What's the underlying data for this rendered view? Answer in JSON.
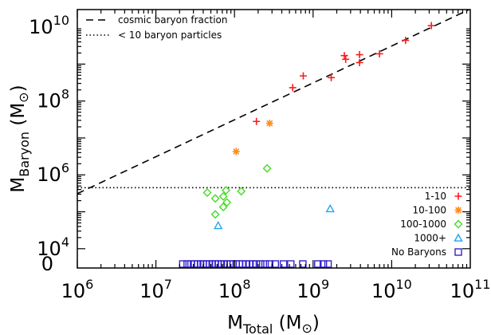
{
  "chart_data": {
    "type": "scatter",
    "x_scale": "log",
    "y_scale": "log (with separate zero row)",
    "xlim": [
      1000000,
      100000000000
    ],
    "ylim": [
      3000,
      30000000000
    ],
    "xlabel": {
      "main": "M",
      "sub": "Total",
      "unit": "(M",
      "sun": "⊙",
      "close": ")"
    },
    "ylabel": {
      "main": "M",
      "sub": "Baryon",
      "unit": "(M",
      "sun": "⊙",
      "close": ")"
    },
    "x_ticks": [
      {
        "value": 1000000,
        "base": "10",
        "exp": "6"
      },
      {
        "value": 10000000,
        "base": "10",
        "exp": "7"
      },
      {
        "value": 100000000,
        "base": "10",
        "exp": "8"
      },
      {
        "value": 1000000000,
        "base": "10",
        "exp": "9"
      },
      {
        "value": 10000000000,
        "base": "10",
        "exp": "10"
      },
      {
        "value": 100000000000,
        "base": "10",
        "exp": "11"
      }
    ],
    "y_ticks": [
      {
        "value": 10000,
        "base": "10",
        "exp": "4"
      },
      {
        "value": 1000000,
        "base": "10",
        "exp": "6"
      },
      {
        "value": 100000000,
        "base": "10",
        "exp": "8"
      },
      {
        "value": 10000000000,
        "base": "10",
        "exp": "10"
      }
    ],
    "y_zero_label": "0",
    "reference_lines": [
      {
        "name": "cosmic baryon fraction",
        "style": "dashed",
        "kind": "fraction",
        "fraction": 0.31,
        "color": "#000000"
      },
      {
        "name": "< 10 baryon particles",
        "style": "dotted",
        "kind": "constant",
        "y": 450000,
        "color": "#000000"
      }
    ],
    "series": [
      {
        "name": "1-10",
        "marker": "plus",
        "color": "#ff1a1a",
        "points": [
          {
            "x": 190000000,
            "y": 28000000
          },
          {
            "x": 550000000,
            "y": 230000000
          },
          {
            "x": 750000000,
            "y": 480000000
          },
          {
            "x": 1700000000,
            "y": 430000000
          },
          {
            "x": 2500000000,
            "y": 1700000000
          },
          {
            "x": 2600000000,
            "y": 1350000000
          },
          {
            "x": 3900000000,
            "y": 1800000000
          },
          {
            "x": 3900000000,
            "y": 1100000000
          },
          {
            "x": 7000000000,
            "y": 1900000000
          },
          {
            "x": 15000000000,
            "y": 4400000000
          },
          {
            "x": 32000000000,
            "y": 11000000000
          }
        ]
      },
      {
        "name": "10-100",
        "marker": "asterisk",
        "color": "#ff8c1a",
        "points": [
          {
            "x": 280000000,
            "y": 25000000
          },
          {
            "x": 105000000,
            "y": 4300000
          }
        ]
      },
      {
        "name": "100-1000",
        "marker": "diamond",
        "color": "#44dd22",
        "points": [
          {
            "x": 260000000,
            "y": 1500000
          },
          {
            "x": 45000000,
            "y": 330000
          },
          {
            "x": 57000000,
            "y": 230000
          },
          {
            "x": 57000000,
            "y": 85000
          },
          {
            "x": 72000000,
            "y": 260000
          },
          {
            "x": 72000000,
            "y": 135000
          },
          {
            "x": 78000000,
            "y": 380000
          },
          {
            "x": 122000000,
            "y": 360000
          },
          {
            "x": 80000000,
            "y": 180000
          }
        ]
      },
      {
        "name": "1000+",
        "marker": "triangle",
        "color": "#22a6ee",
        "points": [
          {
            "x": 62000000,
            "y": 42000
          },
          {
            "x": 1650000000,
            "y": 120000
          }
        ]
      },
      {
        "name": "No Baryons",
        "marker": "square",
        "color": "#3322cc",
        "y_zero": true,
        "points": [
          {
            "x": 22000000,
            "y": 0
          },
          {
            "x": 25000000,
            "y": 0
          },
          {
            "x": 28000000,
            "y": 0
          },
          {
            "x": 31000000,
            "y": 0
          },
          {
            "x": 34000000,
            "y": 0
          },
          {
            "x": 37000000,
            "y": 0
          },
          {
            "x": 40000000,
            "y": 0
          },
          {
            "x": 44000000,
            "y": 0
          },
          {
            "x": 48000000,
            "y": 0
          },
          {
            "x": 52000000,
            "y": 0
          },
          {
            "x": 57000000,
            "y": 0
          },
          {
            "x": 62000000,
            "y": 0
          },
          {
            "x": 68000000,
            "y": 0
          },
          {
            "x": 74000000,
            "y": 0
          },
          {
            "x": 80000000,
            "y": 0
          },
          {
            "x": 88000000,
            "y": 0
          },
          {
            "x": 96000000,
            "y": 0
          },
          {
            "x": 105000000,
            "y": 0
          },
          {
            "x": 115000000,
            "y": 0
          },
          {
            "x": 126000000,
            "y": 0
          },
          {
            "x": 140000000,
            "y": 0
          },
          {
            "x": 155000000,
            "y": 0
          },
          {
            "x": 172000000,
            "y": 0
          },
          {
            "x": 190000000,
            "y": 0
          },
          {
            "x": 215000000,
            "y": 0
          },
          {
            "x": 245000000,
            "y": 0
          },
          {
            "x": 280000000,
            "y": 0
          },
          {
            "x": 330000000,
            "y": 0
          },
          {
            "x": 420000000,
            "y": 0
          },
          {
            "x": 520000000,
            "y": 0
          },
          {
            "x": 740000000,
            "y": 0
          },
          {
            "x": 1150000000,
            "y": 0
          },
          {
            "x": 1350000000,
            "y": 0
          },
          {
            "x": 1550000000,
            "y": 0
          }
        ]
      }
    ],
    "legend": {
      "placement": "bottom-right"
    },
    "line_legend": {
      "placement": "top-left"
    }
  }
}
